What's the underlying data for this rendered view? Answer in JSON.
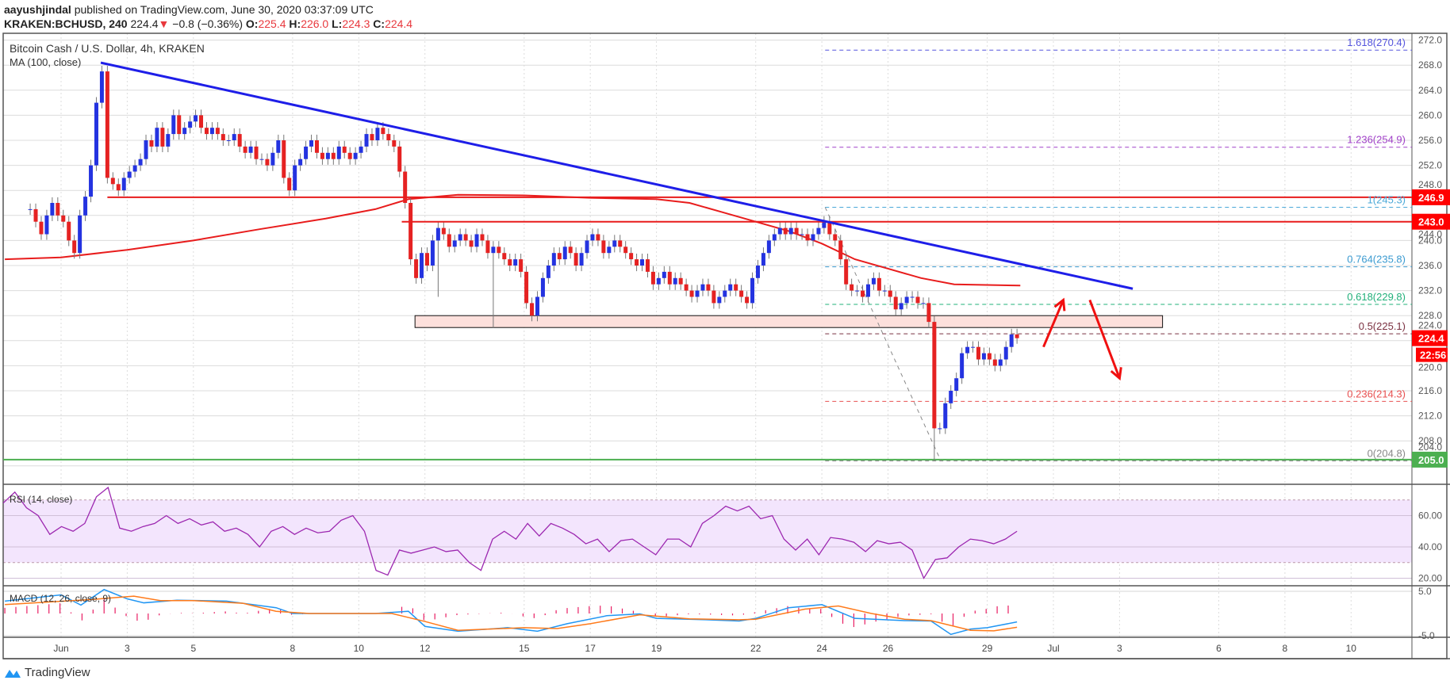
{
  "header": {
    "author": "aayushjindal",
    "published": "published on TradingView.com, June 30, 2020 03:37:09 UTC",
    "symbol": "KRAKEN:BCHUSD, 240",
    "last": "224.4",
    "change": "−0.8 (−0.36%)",
    "o_label": "O:",
    "o": "225.4",
    "h_label": "H:",
    "h": "226.0",
    "l_label": "L:",
    "l": "224.3",
    "c_label": "C:",
    "c": "224.4"
  },
  "legend": {
    "title": "Bitcoin Cash / U.S. Dollar, 4h, KRAKEN",
    "ma": "MA (100, close)",
    "rsi": "RSI (14, close)",
    "macd": "MACD (12, 26, close, 9)"
  },
  "footer": {
    "brand": "TradingView"
  },
  "colors": {
    "up": "#2433e0",
    "down": "#e52222",
    "ma": "#e81c1c",
    "trend": "#1e1ee8",
    "rsi": "#9c27b0",
    "macd": "#2196f3",
    "signal": "#ff7a1a",
    "hist": "#e91e63",
    "support": "#4caf50"
  },
  "chart_data": {
    "type": "candlestick",
    "title": "Bitcoin Cash / U.S. Dollar, 4h, KRAKEN",
    "x_unit": "day of June 2020 (4h bars)",
    "last_bar_day": 29.9,
    "closes": [
      245,
      243,
      241,
      244,
      246,
      244,
      243,
      240,
      238,
      244,
      247,
      252,
      262,
      267,
      250,
      249,
      248,
      250,
      251,
      252,
      253,
      256,
      255,
      258,
      255,
      257,
      260,
      257,
      258,
      259,
      260,
      258,
      257,
      258,
      257,
      256,
      256,
      257,
      255,
      254,
      255,
      253,
      253,
      252,
      254,
      256,
      250,
      248,
      252,
      253,
      255,
      256,
      254,
      253,
      254,
      253,
      255,
      254,
      253,
      254,
      255,
      257,
      256,
      258,
      257,
      256,
      255,
      251,
      246,
      237,
      234,
      238,
      236,
      240,
      242,
      241,
      239,
      240,
      241,
      240,
      239,
      241,
      240,
      238,
      239,
      238,
      237,
      236,
      237,
      235,
      230,
      228,
      231,
      234,
      236,
      238,
      237,
      239,
      238,
      236,
      238,
      240,
      241,
      240,
      238,
      239,
      240,
      239,
      238,
      237,
      236,
      237,
      235,
      233,
      234,
      235,
      233,
      234,
      233,
      232,
      231,
      232,
      233,
      232,
      230,
      231,
      232,
      233,
      232,
      231,
      230,
      234,
      236,
      238,
      240,
      241,
      242,
      241,
      242,
      241,
      241,
      240,
      241,
      242,
      243,
      241,
      240,
      237,
      233,
      232,
      232,
      231,
      233,
      234,
      232,
      232,
      231,
      229,
      230,
      231,
      231,
      230,
      230,
      227,
      210,
      210,
      214,
      216,
      218,
      222,
      223,
      223,
      221,
      222,
      221,
      220,
      221,
      223,
      225,
      224.4
    ],
    "low_overrides": {
      "164": 204.8,
      "74": 231,
      "84": 226
    },
    "ma100": [
      [
        -0.7,
        237
      ],
      [
        1,
        237.3
      ],
      [
        3,
        238.5
      ],
      [
        5,
        240
      ],
      [
        7,
        241.8
      ],
      [
        9,
        243.5
      ],
      [
        10.5,
        245
      ],
      [
        11.5,
        246.6
      ],
      [
        13,
        247.3
      ],
      [
        15,
        247.2
      ],
      [
        17,
        246.8
      ],
      [
        19,
        246.6
      ],
      [
        20,
        246
      ],
      [
        21,
        244.5
      ],
      [
        22,
        243
      ],
      [
        23,
        241.5
      ],
      [
        24,
        239.5
      ],
      [
        25,
        237
      ],
      [
        26,
        235.5
      ],
      [
        27,
        234
      ],
      [
        28,
        233
      ],
      [
        30,
        232.8
      ]
    ],
    "trendline": [
      [
        2.2,
        268.4
      ],
      [
        33.4,
        232.3
      ]
    ],
    "horizontal_lines": [
      {
        "value": 246.9,
        "from_day": 2.4,
        "label": "246.9"
      },
      {
        "value": 243.0,
        "from_day": 11.3,
        "label": "243.0"
      }
    ],
    "support_zone": {
      "from_day": 11.7,
      "to_day": 34.3,
      "low": 226.1,
      "high": 228.0
    },
    "support_line": {
      "value": 205.0,
      "label": "205.0"
    },
    "fib": {
      "from_day": 24.1,
      "swing_high": 245.3,
      "swing_low": 204.8,
      "low_day": 27.6,
      "levels": [
        {
          "label": "1.618(270.4)",
          "value": 270.4,
          "color": "#5555dd"
        },
        {
          "label": "1.236(254.9)",
          "value": 254.9,
          "color": "#a040c8"
        },
        {
          "label": "1(245.3)",
          "value": 245.3,
          "color": "#4aa8d8"
        },
        {
          "label": "0.764(235.8)",
          "value": 235.8,
          "color": "#3a9ad0"
        },
        {
          "label": "0.618(229.8)",
          "value": 229.8,
          "color": "#22b07a"
        },
        {
          "label": "0.5(225.1)",
          "value": 225.1,
          "color": "#7a3040"
        },
        {
          "label": "0.236(214.3)",
          "value": 214.3,
          "color": "#e85050"
        },
        {
          "label": "0(204.8)",
          "value": 204.8,
          "color": "#888888"
        }
      ]
    },
    "arrows": [
      {
        "dir": "up",
        "from": [
          30.7,
          223
        ],
        "to": [
          31.3,
          230.5
        ]
      },
      {
        "dir": "down",
        "from": [
          32.1,
          230.5
        ],
        "to": [
          33.0,
          218
        ]
      }
    ],
    "price_axis": {
      "ylim": [
        203,
        273
      ],
      "ticks": [
        "272.0",
        "268.0",
        "264.0",
        "260.0",
        "256.0",
        "252.0",
        "248.0",
        "244.0",
        "240.0",
        "236.0",
        "232.0",
        "228.0",
        "224.0",
        "220.0",
        "216.0",
        "212.0",
        "208.0",
        "204.0"
      ]
    },
    "price_labels": {
      "last": "224.4",
      "countdown": "22:56"
    },
    "x_ticks": [
      {
        "day": 1,
        "label": "Jun"
      },
      {
        "day": 3,
        "label": "3"
      },
      {
        "day": 5,
        "label": "5"
      },
      {
        "day": 8,
        "label": "8"
      },
      {
        "day": 10,
        "label": "10"
      },
      {
        "day": 12,
        "label": "12"
      },
      {
        "day": 15,
        "label": "15"
      },
      {
        "day": 17,
        "label": "17"
      },
      {
        "day": 19,
        "label": "19"
      },
      {
        "day": 22,
        "label": "22"
      },
      {
        "day": 24,
        "label": "24"
      },
      {
        "day": 26,
        "label": "26"
      },
      {
        "day": 29,
        "label": "29"
      },
      {
        "day": 31,
        "label": "Jul"
      },
      {
        "day": 33,
        "label": "3"
      },
      {
        "day": 36,
        "label": "6"
      },
      {
        "day": 38,
        "label": "8"
      },
      {
        "day": 40,
        "label": "10"
      }
    ],
    "rsi": {
      "ticks": [
        "60.00",
        "40.00",
        "20.00"
      ],
      "band": [
        30,
        70
      ],
      "values": [
        68,
        75,
        65,
        60,
        48,
        53,
        50,
        55,
        72,
        78,
        52,
        50,
        53,
        55,
        60,
        55,
        58,
        54,
        56,
        50,
        52,
        48,
        40,
        50,
        53,
        48,
        52,
        49,
        50,
        57,
        60,
        50,
        25,
        22,
        38,
        36,
        38,
        40,
        37,
        38,
        30,
        25,
        45,
        50,
        45,
        55,
        47,
        55,
        52,
        48,
        42,
        45,
        37,
        44,
        45,
        40,
        35,
        45,
        45,
        40,
        55,
        60,
        66,
        63,
        66,
        58,
        60,
        45,
        38,
        45,
        35,
        46,
        45,
        43,
        37,
        44,
        42,
        43,
        38,
        20,
        32,
        33,
        40,
        45,
        44,
        42,
        45,
        50
      ]
    },
    "macd": {
      "ticks": [
        "5.0",
        "-5.0"
      ],
      "macd": [
        [
          -0.7,
          2.8
        ],
        [
          1,
          4.2
        ],
        [
          1.6,
          1.9
        ],
        [
          2.3,
          5.4
        ],
        [
          3,
          3.3
        ],
        [
          3.5,
          2.4
        ],
        [
          4.5,
          3
        ],
        [
          6,
          2.8
        ],
        [
          7.5,
          1.3
        ],
        [
          8,
          0
        ],
        [
          10.5,
          0
        ],
        [
          11.5,
          0.5
        ],
        [
          12,
          -2.9
        ],
        [
          13,
          -4
        ],
        [
          14.5,
          -3.2
        ],
        [
          15.4,
          -4
        ],
        [
          16.3,
          -2.3
        ],
        [
          17.5,
          -0.5
        ],
        [
          18.5,
          -0.1
        ],
        [
          19,
          -1.1
        ],
        [
          20.5,
          -1.4
        ],
        [
          21.5,
          -1.7
        ],
        [
          22,
          -1.1
        ],
        [
          23,
          1.3
        ],
        [
          24,
          2
        ],
        [
          25,
          -1.1
        ],
        [
          26.5,
          -1.6
        ],
        [
          27.3,
          -1.7
        ],
        [
          27.9,
          -4.7
        ],
        [
          28.5,
          -3.5
        ],
        [
          29,
          -3.2
        ],
        [
          29.9,
          -1.9
        ]
      ],
      "signal": [
        [
          -0.7,
          2.0
        ],
        [
          2,
          3.2
        ],
        [
          3.2,
          3.9
        ],
        [
          4,
          2.9
        ],
        [
          5,
          2.9
        ],
        [
          6.5,
          2.3
        ],
        [
          7.5,
          0.5
        ],
        [
          8.5,
          0
        ],
        [
          11,
          0
        ],
        [
          12,
          -1.8
        ],
        [
          13,
          -3.8
        ],
        [
          15,
          -3.2
        ],
        [
          16,
          -3.4
        ],
        [
          17,
          -2.3
        ],
        [
          18.5,
          -0.3
        ],
        [
          20,
          -1.2
        ],
        [
          21.5,
          -1.4
        ],
        [
          22,
          -1.3
        ],
        [
          23.5,
          1
        ],
        [
          24.5,
          1.7
        ],
        [
          25.5,
          0
        ],
        [
          26.5,
          -1.3
        ],
        [
          27.3,
          -1.6
        ],
        [
          28.5,
          -3.8
        ],
        [
          29.2,
          -3.9
        ],
        [
          29.9,
          -3.1
        ]
      ]
    }
  }
}
